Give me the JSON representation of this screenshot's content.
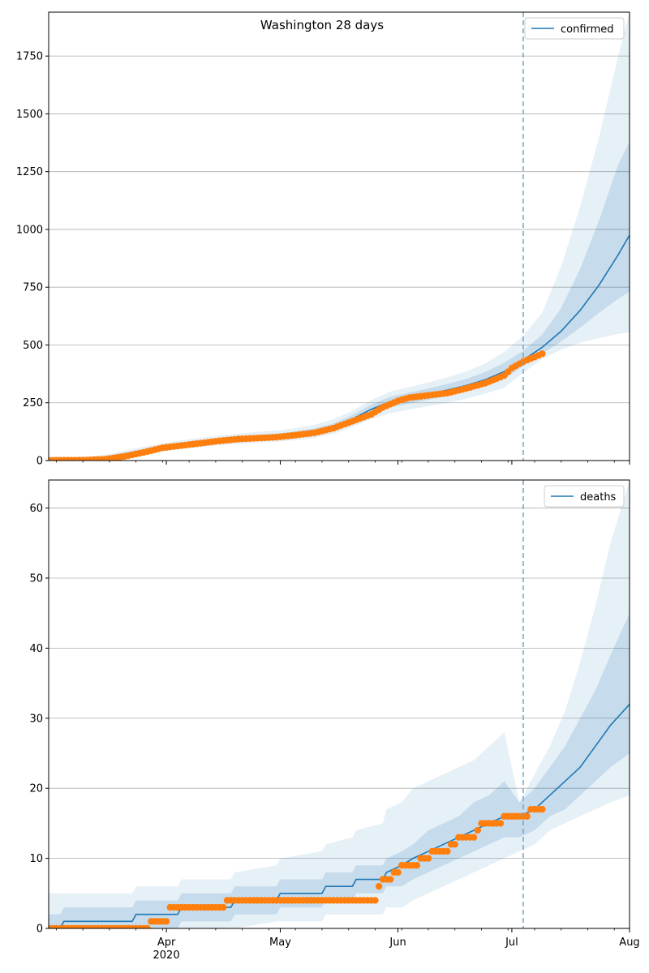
{
  "title": "Washington 28 days",
  "colors": {
    "model": "#1f77b4",
    "observed": "#ff7f0e",
    "band": "#1f77b4",
    "grid": "#b0b0b0",
    "vline": "#6fa3c9"
  },
  "chart_data": [
    {
      "type": "line",
      "name": "confirmed-panel",
      "legend": "confirmed",
      "legend_position": "top-right",
      "grid": "y",
      "x_ticks_major": [
        {
          "day": 31,
          "label": "Apr"
        },
        {
          "day": 61,
          "label": "May"
        },
        {
          "day": 92,
          "label": "Jun"
        },
        {
          "day": 122,
          "label": "Jul"
        },
        {
          "day": 153,
          "label": "Aug"
        }
      ],
      "x_year_label": "2020",
      "x_minor_step_days": 7,
      "xlim_days": [
        0,
        153
      ],
      "ylim": [
        0,
        1940
      ],
      "yticks": [
        0,
        250,
        500,
        750,
        1000,
        1250,
        1500,
        1750
      ],
      "forecast_start_day": 125,
      "model_days": [
        0,
        5,
        10,
        15,
        20,
        25,
        30,
        35,
        40,
        45,
        50,
        55,
        60,
        65,
        70,
        75,
        80,
        85,
        90,
        95,
        100,
        105,
        110,
        115,
        120,
        125,
        130,
        135,
        140,
        145,
        150,
        153
      ],
      "model": [
        2,
        4,
        7,
        14,
        28,
        44,
        56,
        68,
        77,
        86,
        93,
        99,
        104,
        113,
        125,
        145,
        180,
        222,
        255,
        272,
        288,
        305,
        325,
        350,
        385,
        435,
        490,
        560,
        650,
        760,
        890,
        975
      ],
      "band_outer_low": [
        0,
        1,
        3,
        8,
        18,
        30,
        40,
        50,
        58,
        66,
        72,
        78,
        82,
        88,
        98,
        115,
        145,
        180,
        205,
        220,
        235,
        250,
        268,
        290,
        315,
        380,
        440,
        480,
        510,
        530,
        548,
        555
      ],
      "band_outer_high": [
        6,
        10,
        16,
        26,
        42,
        60,
        74,
        88,
        98,
        108,
        116,
        124,
        130,
        140,
        155,
        178,
        215,
        262,
        298,
        318,
        338,
        360,
        385,
        420,
        470,
        540,
        640,
        840,
        1100,
        1400,
        1750,
        1940
      ],
      "band_inner_low": [
        1,
        2,
        5,
        11,
        23,
        37,
        48,
        59,
        68,
        76,
        83,
        89,
        94,
        101,
        112,
        131,
        164,
        202,
        231,
        247,
        263,
        279,
        298,
        322,
        352,
        410,
        462,
        515,
        575,
        640,
        700,
        730
      ],
      "band_inner_high": [
        4,
        7,
        11,
        19,
        34,
        51,
        65,
        78,
        87,
        96,
        104,
        111,
        117,
        126,
        139,
        160,
        197,
        242,
        276,
        294,
        312,
        331,
        353,
        383,
        423,
        475,
        545,
        660,
        830,
        1040,
        1280,
        1380
      ],
      "observed_range_days": [
        0,
        130
      ],
      "observed_knots": [
        [
          0,
          1
        ],
        [
          10,
          2
        ],
        [
          15,
          6
        ],
        [
          20,
          18
        ],
        [
          25,
          35
        ],
        [
          30,
          55
        ],
        [
          35,
          65
        ],
        [
          40,
          75
        ],
        [
          45,
          85
        ],
        [
          50,
          93
        ],
        [
          55,
          97
        ],
        [
          60,
          101
        ],
        [
          65,
          110
        ],
        [
          70,
          120
        ],
        [
          75,
          140
        ],
        [
          80,
          170
        ],
        [
          85,
          200
        ],
        [
          88,
          230
        ],
        [
          92,
          258
        ],
        [
          95,
          272
        ],
        [
          100,
          282
        ],
        [
          105,
          292
        ],
        [
          110,
          312
        ],
        [
          115,
          335
        ],
        [
          120,
          368
        ],
        [
          122,
          400
        ],
        [
          125,
          428
        ],
        [
          128,
          448
        ],
        [
          130,
          462
        ]
      ]
    },
    {
      "type": "line",
      "name": "deaths-panel",
      "legend": "deaths",
      "legend_position": "top-right",
      "grid": "y",
      "x_ticks_major": [
        {
          "day": 31,
          "label": "Apr"
        },
        {
          "day": 61,
          "label": "May"
        },
        {
          "day": 92,
          "label": "Jun"
        },
        {
          "day": 122,
          "label": "Jul"
        },
        {
          "day": 153,
          "label": "Aug"
        }
      ],
      "x_year_label": "2020",
      "x_minor_step_days": 7,
      "xlim_days": [
        0,
        153
      ],
      "ylim": [
        0,
        64
      ],
      "yticks": [
        0,
        10,
        20,
        30,
        40,
        50,
        60
      ],
      "forecast_start_day": 125,
      "model_days": [
        0,
        3,
        4,
        22,
        23,
        34,
        35,
        48,
        49,
        60,
        61,
        72,
        73,
        80,
        81,
        88,
        89,
        93,
        96,
        100,
        104,
        108,
        112,
        116,
        120,
        124,
        128,
        132,
        136,
        140,
        144,
        148,
        153
      ],
      "model": [
        0,
        0,
        1,
        1,
        2,
        2,
        3,
        3,
        4,
        4,
        5,
        5,
        6,
        6,
        7,
        7,
        8,
        9,
        10,
        11,
        12,
        13,
        14,
        15,
        16,
        16,
        17,
        19,
        21,
        23,
        26,
        29,
        32
      ],
      "band_outer_low": [
        0,
        0,
        0,
        0,
        0,
        0,
        0,
        0,
        0,
        1,
        1,
        1,
        2,
        2,
        2,
        2,
        3,
        3,
        4,
        5,
        6,
        7,
        8,
        9,
        10,
        11,
        12,
        14,
        15,
        16,
        17,
        18,
        19
      ],
      "band_outer_high": [
        5,
        5,
        5,
        5,
        6,
        6,
        7,
        7,
        8,
        9,
        10,
        11,
        12,
        13,
        14,
        15,
        17,
        18,
        20,
        21,
        22,
        23,
        24,
        26,
        28,
        18,
        22,
        26,
        31,
        38,
        46,
        55,
        64
      ],
      "band_inner_low": [
        0,
        0,
        0,
        0,
        0,
        0,
        1,
        1,
        2,
        2,
        3,
        3,
        4,
        4,
        5,
        5,
        6,
        6,
        7,
        8,
        9,
        10,
        11,
        12,
        13,
        13,
        14,
        16,
        17,
        19,
        21,
        23,
        25
      ],
      "band_inner_high": [
        2,
        2,
        3,
        3,
        4,
        4,
        5,
        5,
        6,
        6,
        7,
        7,
        8,
        8,
        9,
        9,
        10,
        11,
        12,
        14,
        15,
        16,
        18,
        19,
        21,
        18,
        20,
        23,
        26,
        30,
        34,
        39,
        45
      ],
      "observed_range_days": [
        0,
        130
      ],
      "observed_steps": [
        [
          0,
          0
        ],
        [
          27,
          1
        ],
        [
          32,
          3
        ],
        [
          47,
          4
        ],
        [
          87,
          6
        ],
        [
          88,
          7
        ],
        [
          91,
          8
        ],
        [
          93,
          9
        ],
        [
          98,
          10
        ],
        [
          101,
          11
        ],
        [
          106,
          12
        ],
        [
          108,
          13
        ],
        [
          113,
          14
        ],
        [
          114,
          15
        ],
        [
          120,
          16
        ],
        [
          127,
          17
        ]
      ]
    }
  ]
}
